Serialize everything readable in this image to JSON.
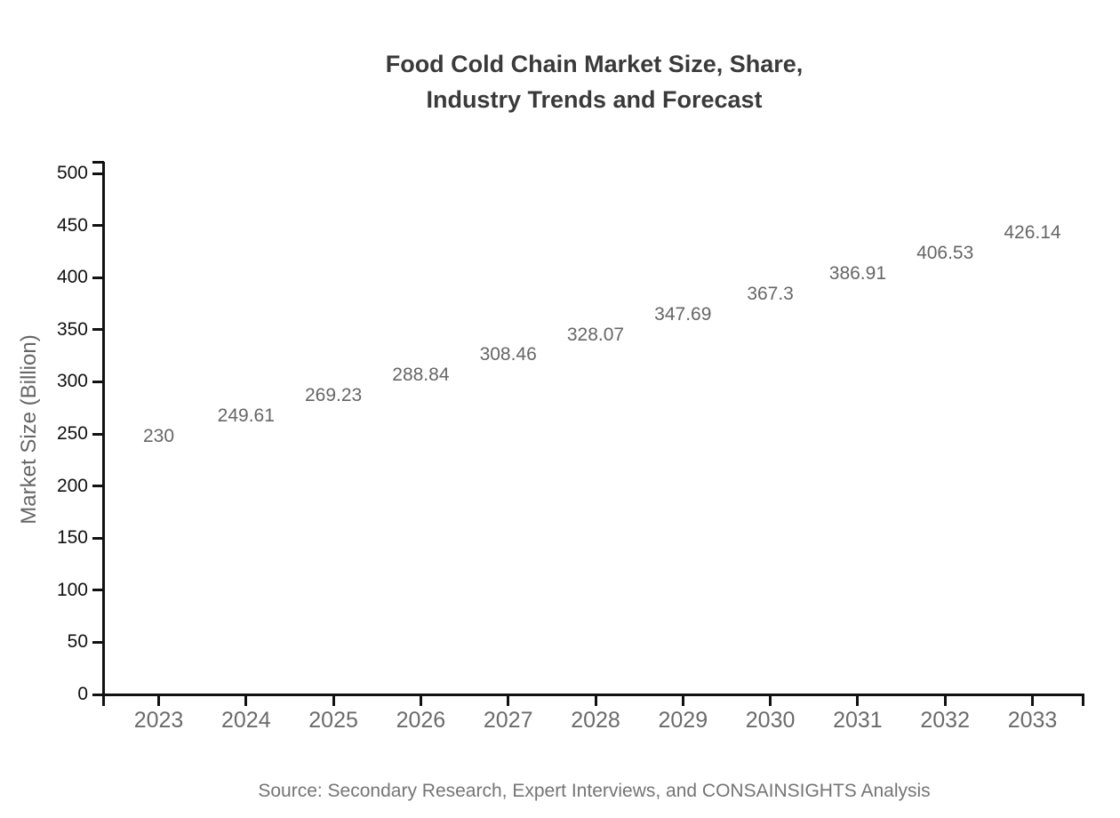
{
  "title": {
    "line1": "Food Cold Chain Market Size, Share,",
    "line2": "Industry Trends and Forecast"
  },
  "source": "Source: Secondary Research, Expert Interviews, and CONSAINSIGHTS Analysis",
  "chart_data": {
    "type": "bar",
    "title": "Food Cold Chain Market Size, Share, Industry Trends and Forecast",
    "title_lines": [
      "Food Cold Chain Market Size, Share,",
      "Industry Trends and Forecast"
    ],
    "categories": [
      "2023",
      "2024",
      "2025",
      "2026",
      "2027",
      "2028",
      "2029",
      "2030",
      "2031",
      "2032",
      "2033"
    ],
    "values": [
      230,
      249.61,
      269.23,
      288.84,
      308.46,
      328.07,
      347.69,
      367.3,
      386.91,
      406.53,
      426.14
    ],
    "value_labels": [
      "230",
      "249.61",
      "269.23",
      "288.84",
      "308.46",
      "328.07",
      "347.69",
      "367.3",
      "386.91",
      "406.53",
      "426.14"
    ],
    "xlabel": "",
    "ylabel": "Market Size (Billion)",
    "ylim": [
      0,
      500
    ],
    "ytick_step": 50,
    "grid": false,
    "legend": "none",
    "colors": {
      "bar_gradient_top": "#2189F6",
      "bar_gradient_bottom": "#4466DD",
      "axis": "#111111",
      "ytick_label": "#111111",
      "xtick_label": "#6b6b6b",
      "value_label": "#666666",
      "title": "#3a3a3a",
      "source": "#757575"
    }
  }
}
